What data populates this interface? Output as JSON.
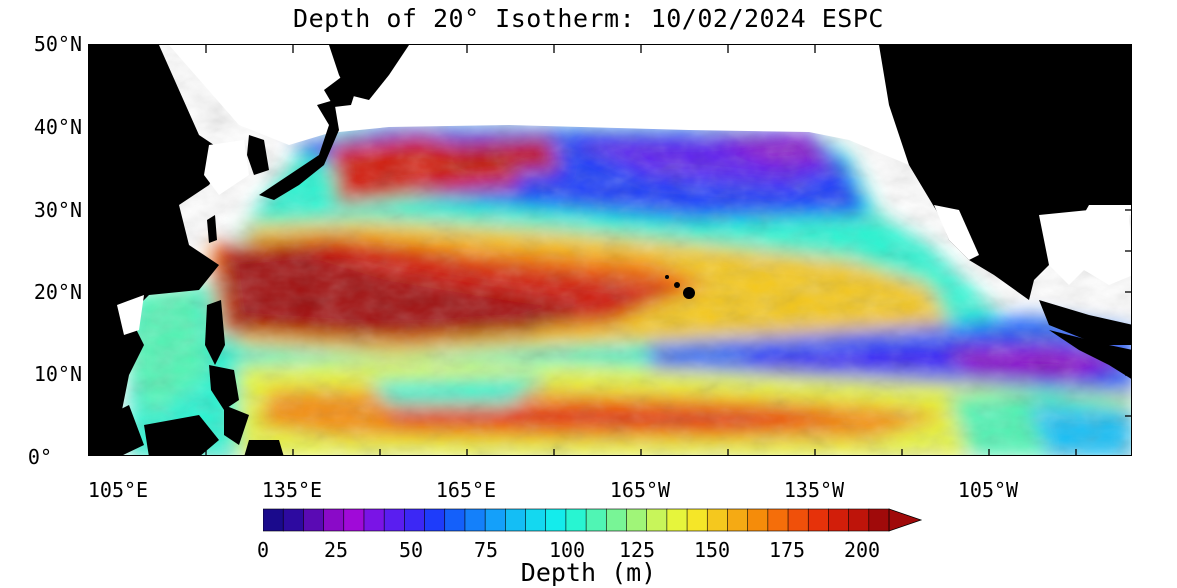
{
  "title": "Depth of 20° Isotherm: 10/02/2024 ESPC",
  "map": {
    "lat_labels": [
      "50°N",
      "40°N",
      "30°N",
      "20°N",
      "10°N",
      "0°"
    ],
    "lon_labels": [
      "105°E",
      "135°E",
      "165°E",
      "165°W",
      "135°W",
      "105°W"
    ],
    "land_color": "#000000",
    "missing_color": "#ffffff"
  },
  "colorbar": {
    "title": "Depth (m)",
    "tick_labels": [
      "0",
      "25",
      "50",
      "75",
      "100",
      "125",
      "150",
      "175",
      "200"
    ],
    "colors": [
      "#1a0a8c",
      "#2d0aa0",
      "#5a0ab4",
      "#8a0ac8",
      "#a00ad8",
      "#7a14e6",
      "#5a1ef0",
      "#3c28f5",
      "#1e3cfa",
      "#1460fa",
      "#1480fa",
      "#14a0fa",
      "#14bef5",
      "#14d8f0",
      "#14ecec",
      "#28f5d2",
      "#50f5b4",
      "#78f596",
      "#a0f578",
      "#c8f55a",
      "#e6f53c",
      "#f5e628",
      "#f5c81e",
      "#f5aa14",
      "#f58c0a",
      "#f56e0a",
      "#f0500a",
      "#e6320a",
      "#d21e0a",
      "#be140a",
      "#a00a0a"
    ]
  }
}
